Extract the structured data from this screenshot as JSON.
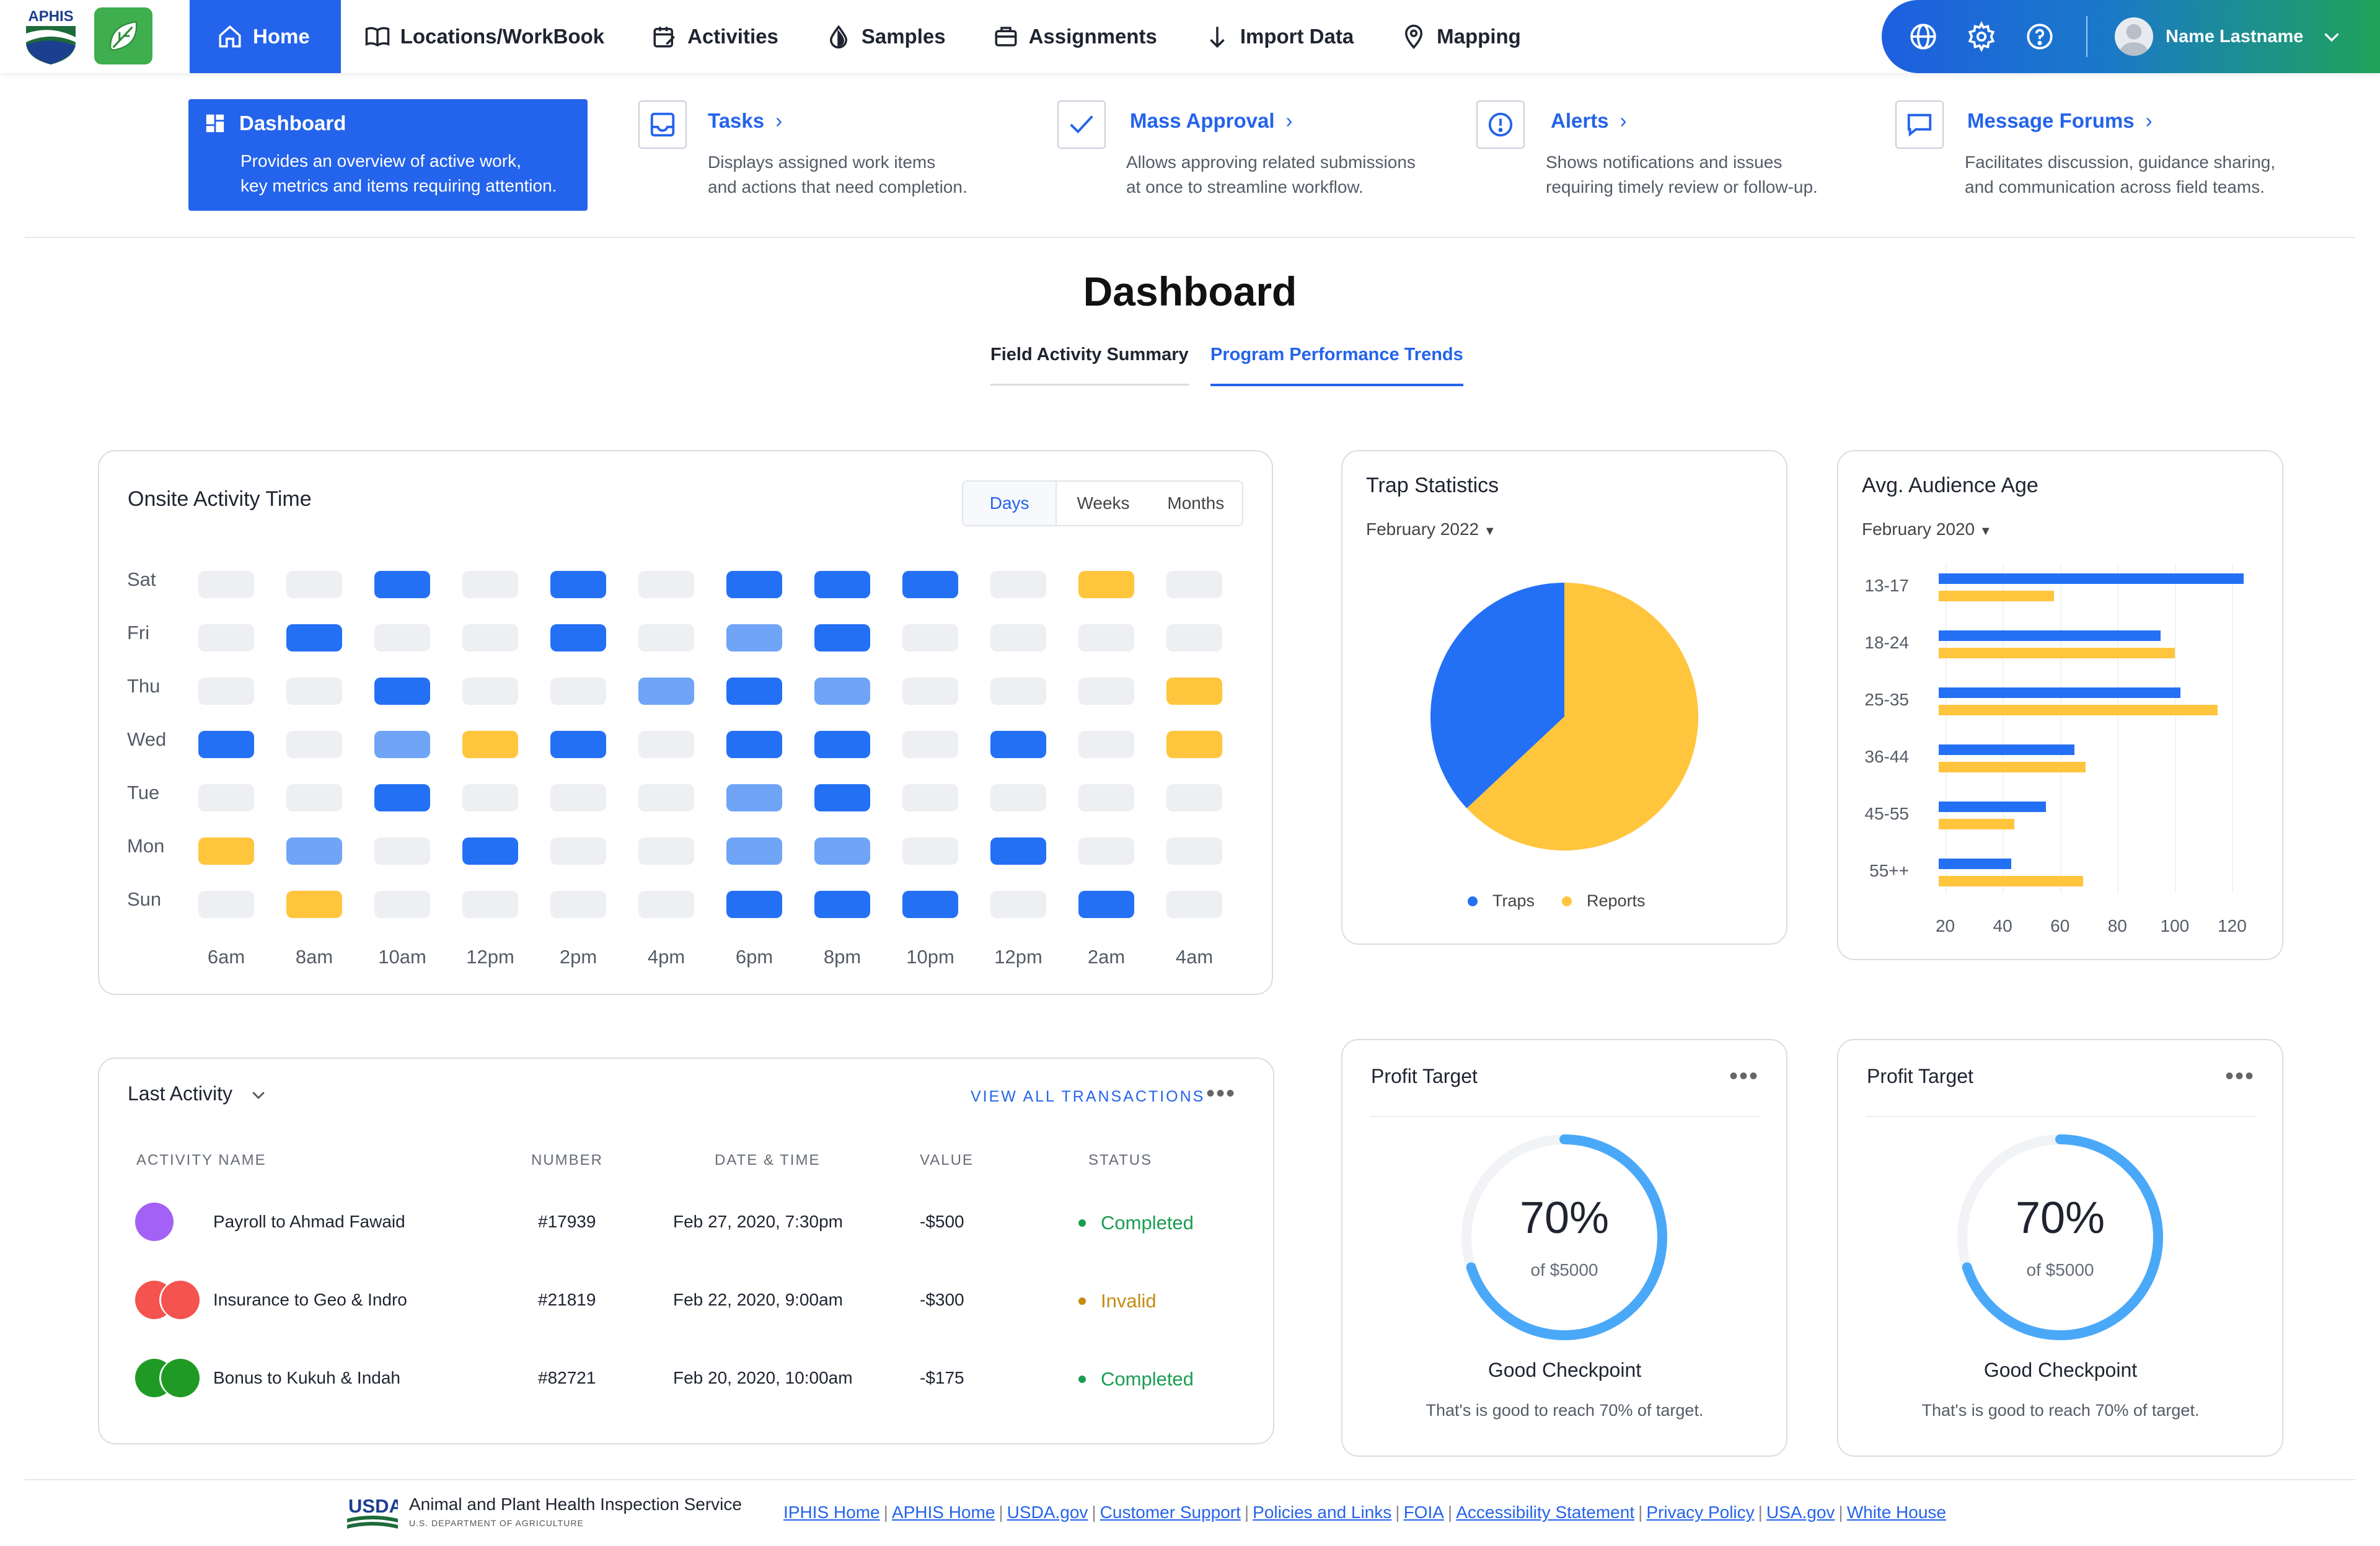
{
  "nav": {
    "brand": "APHIS",
    "items": [
      {
        "label": "Home",
        "icon": "home-icon"
      },
      {
        "label": "Locations/WorkBook",
        "icon": "book-icon"
      },
      {
        "label": "Activities",
        "icon": "calendar-edit-icon"
      },
      {
        "label": "Samples",
        "icon": "drop-icon"
      },
      {
        "label": "Assignments",
        "icon": "briefcase-icon"
      },
      {
        "label": "Import Data",
        "icon": "arrow-down-icon"
      },
      {
        "label": "Mapping",
        "icon": "map-pin-icon"
      }
    ],
    "user": "Name Lastname"
  },
  "quick_links": [
    {
      "title": "Dashboard",
      "desc1": "Provides an overview of active work,",
      "desc2": "key metrics and items requiring attention."
    },
    {
      "title": "Tasks",
      "desc1": "Displays assigned work items",
      "desc2": "and actions that need completion."
    },
    {
      "title": "Mass Approval",
      "desc1": "Allows approving related submissions",
      "desc2": "at once to streamline workflow."
    },
    {
      "title": "Alerts",
      "desc1": "Shows notifications and issues",
      "desc2": "requiring timely review or follow-up."
    },
    {
      "title": "Message Forums",
      "desc1": "Facilitates discussion, guidance sharing,",
      "desc2": "and communication across field teams."
    }
  ],
  "page_title": "Dashboard",
  "tabs": [
    "Field Activity Summary",
    "Program Performance Trends"
  ],
  "colors": {
    "blue": "#2470f5",
    "light_blue": "#6fa4f7",
    "yellow": "#ffc53d",
    "grey": "#eeeff2",
    "green": "#1a9d52",
    "amber": "#c78b12"
  },
  "onsite": {
    "title": "Onsite Activity Time",
    "ranges": [
      "Days",
      "Weeks",
      "Months"
    ],
    "rows": [
      "Sat",
      "Fri",
      "Thu",
      "Wed",
      "Tue",
      "Mon",
      "Sun"
    ],
    "cols": [
      "6am",
      "8am",
      "10am",
      "12pm",
      "2pm",
      "4pm",
      "6pm",
      "8pm",
      "10pm",
      "12pm",
      "2am",
      "4am"
    ],
    "grid": [
      [
        0,
        0,
        1,
        0,
        1,
        0,
        1,
        1,
        1,
        0,
        3,
        0
      ],
      [
        0,
        1,
        0,
        0,
        1,
        0,
        2,
        1,
        0,
        0,
        0,
        0
      ],
      [
        0,
        0,
        1,
        0,
        0,
        2,
        1,
        2,
        0,
        0,
        0,
        3
      ],
      [
        1,
        0,
        2,
        3,
        1,
        0,
        1,
        1,
        0,
        1,
        0,
        3
      ],
      [
        0,
        0,
        1,
        0,
        0,
        0,
        2,
        1,
        0,
        0,
        0,
        0
      ],
      [
        3,
        2,
        0,
        1,
        0,
        0,
        2,
        2,
        0,
        1,
        0,
        0
      ],
      [
        0,
        3,
        0,
        0,
        0,
        0,
        1,
        1,
        1,
        0,
        1,
        0
      ]
    ]
  },
  "trap": {
    "title": "Trap Statistics",
    "month": "February 2022",
    "legend": [
      "Traps",
      "Reports"
    ]
  },
  "audience": {
    "title": "Avg. Audience Age",
    "month": "February 2020",
    "x_ticks": [
      "20",
      "40",
      "60",
      "80",
      "100",
      "120"
    ]
  },
  "chart_data": [
    {
      "type": "pie",
      "title": "Trap Statistics",
      "labels": [
        "Traps",
        "Reports"
      ],
      "values": [
        37,
        63
      ]
    },
    {
      "type": "bar",
      "orientation": "horizontal",
      "title": "Avg. Audience Age",
      "categories": [
        "13-17",
        "18-24",
        "25-35",
        "36-44",
        "45-55",
        "55++"
      ],
      "series": [
        {
          "values": [
            124,
            95,
            102,
            65,
            55,
            43
          ]
        },
        {
          "values": [
            58,
            100,
            115,
            69,
            44,
            68
          ]
        }
      ],
      "xlim": [
        16,
        124
      ]
    }
  ],
  "last_activity": {
    "title": "Last Activity",
    "view_all": "VIEW ALL TRANSACTIONS",
    "headers": [
      "ACTIVITY NAME",
      "NUMBER",
      "DATE & TIME",
      "VALUE",
      "STATUS"
    ],
    "rows": [
      {
        "name": "Payroll to Ahmad Fawaid",
        "number": "#17939",
        "date": "Feb 27, 2020, 7:30pm",
        "value": "-$500",
        "status": "Completed"
      },
      {
        "name": "Insurance to Geo & Indro",
        "number": "#21819",
        "date": "Feb 22, 2020, 9:00am",
        "value": "-$300",
        "status": "Invalid"
      },
      {
        "name": "Bonus to Kukuh & Indah",
        "number": "#82721",
        "date": "Feb 20, 2020, 10:00am",
        "value": "-$175",
        "status": "Completed"
      }
    ]
  },
  "profit": [
    {
      "title": "Profit Target",
      "percent": 70,
      "pct_label": "70%",
      "of": "of $5000",
      "headline": "Good Checkpoint",
      "desc": "That's is good to reach 70% of target."
    },
    {
      "title": "Profit Target",
      "percent": 70,
      "pct_label": "70%",
      "of": "of $5000",
      "headline": "Good Checkpoint",
      "desc": "That's is good to reach 70% of target."
    }
  ],
  "footer": {
    "usda": "USDA",
    "agency": "Animal and Plant Health Inspection Service",
    "dept": "U.S. DEPARTMENT OF AGRICULTURE",
    "links": [
      "IPHIS Home",
      "APHIS Home",
      "USDA.gov",
      "Customer Support",
      "Policies and Links",
      "FOIA",
      "Accessibility Statement",
      "Privacy Policy",
      "USA.gov",
      "White House"
    ]
  }
}
